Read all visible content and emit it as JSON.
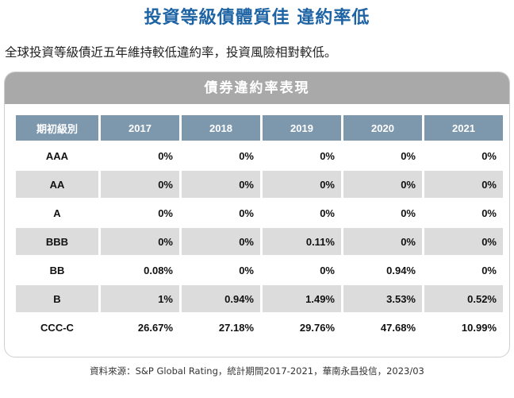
{
  "title": "投資等級債體質佳 違約率低",
  "subtitle": "全球投資等級債近五年維持較低違約率，投資風險相對較低。",
  "table_title": "債券違約率表現",
  "table": {
    "headers": [
      "期初級別",
      "2017",
      "2018",
      "2019",
      "2020",
      "2021"
    ],
    "rows": [
      {
        "grade": "AAA",
        "values": [
          "0%",
          "0%",
          "0%",
          "0%",
          "0%"
        ]
      },
      {
        "grade": "AA",
        "values": [
          "0%",
          "0%",
          "0%",
          "0%",
          "0%"
        ]
      },
      {
        "grade": "A",
        "values": [
          "0%",
          "0%",
          "0%",
          "0%",
          "0%"
        ]
      },
      {
        "grade": "BBB",
        "values": [
          "0%",
          "0%",
          "0.11%",
          "0%",
          "0%"
        ]
      },
      {
        "grade": "BB",
        "values": [
          "0.08%",
          "0%",
          "0%",
          "0.94%",
          "0%"
        ]
      },
      {
        "grade": "B",
        "values": [
          "1%",
          "0.94%",
          "1.49%",
          "3.53%",
          "0.52%"
        ]
      },
      {
        "grade": "CCC-C",
        "values": [
          "26.67%",
          "27.18%",
          "29.76%",
          "47.68%",
          "10.99%"
        ]
      }
    ]
  },
  "footnote": "資料來源：S&P Global Rating，統計期間2017-2021，華南永昌投信，2023/03",
  "colors": {
    "title": "#1e63a4",
    "table_header": "#7d97ad",
    "card_header": "#a9a9a9",
    "row_alt": "#dcdcdc"
  }
}
